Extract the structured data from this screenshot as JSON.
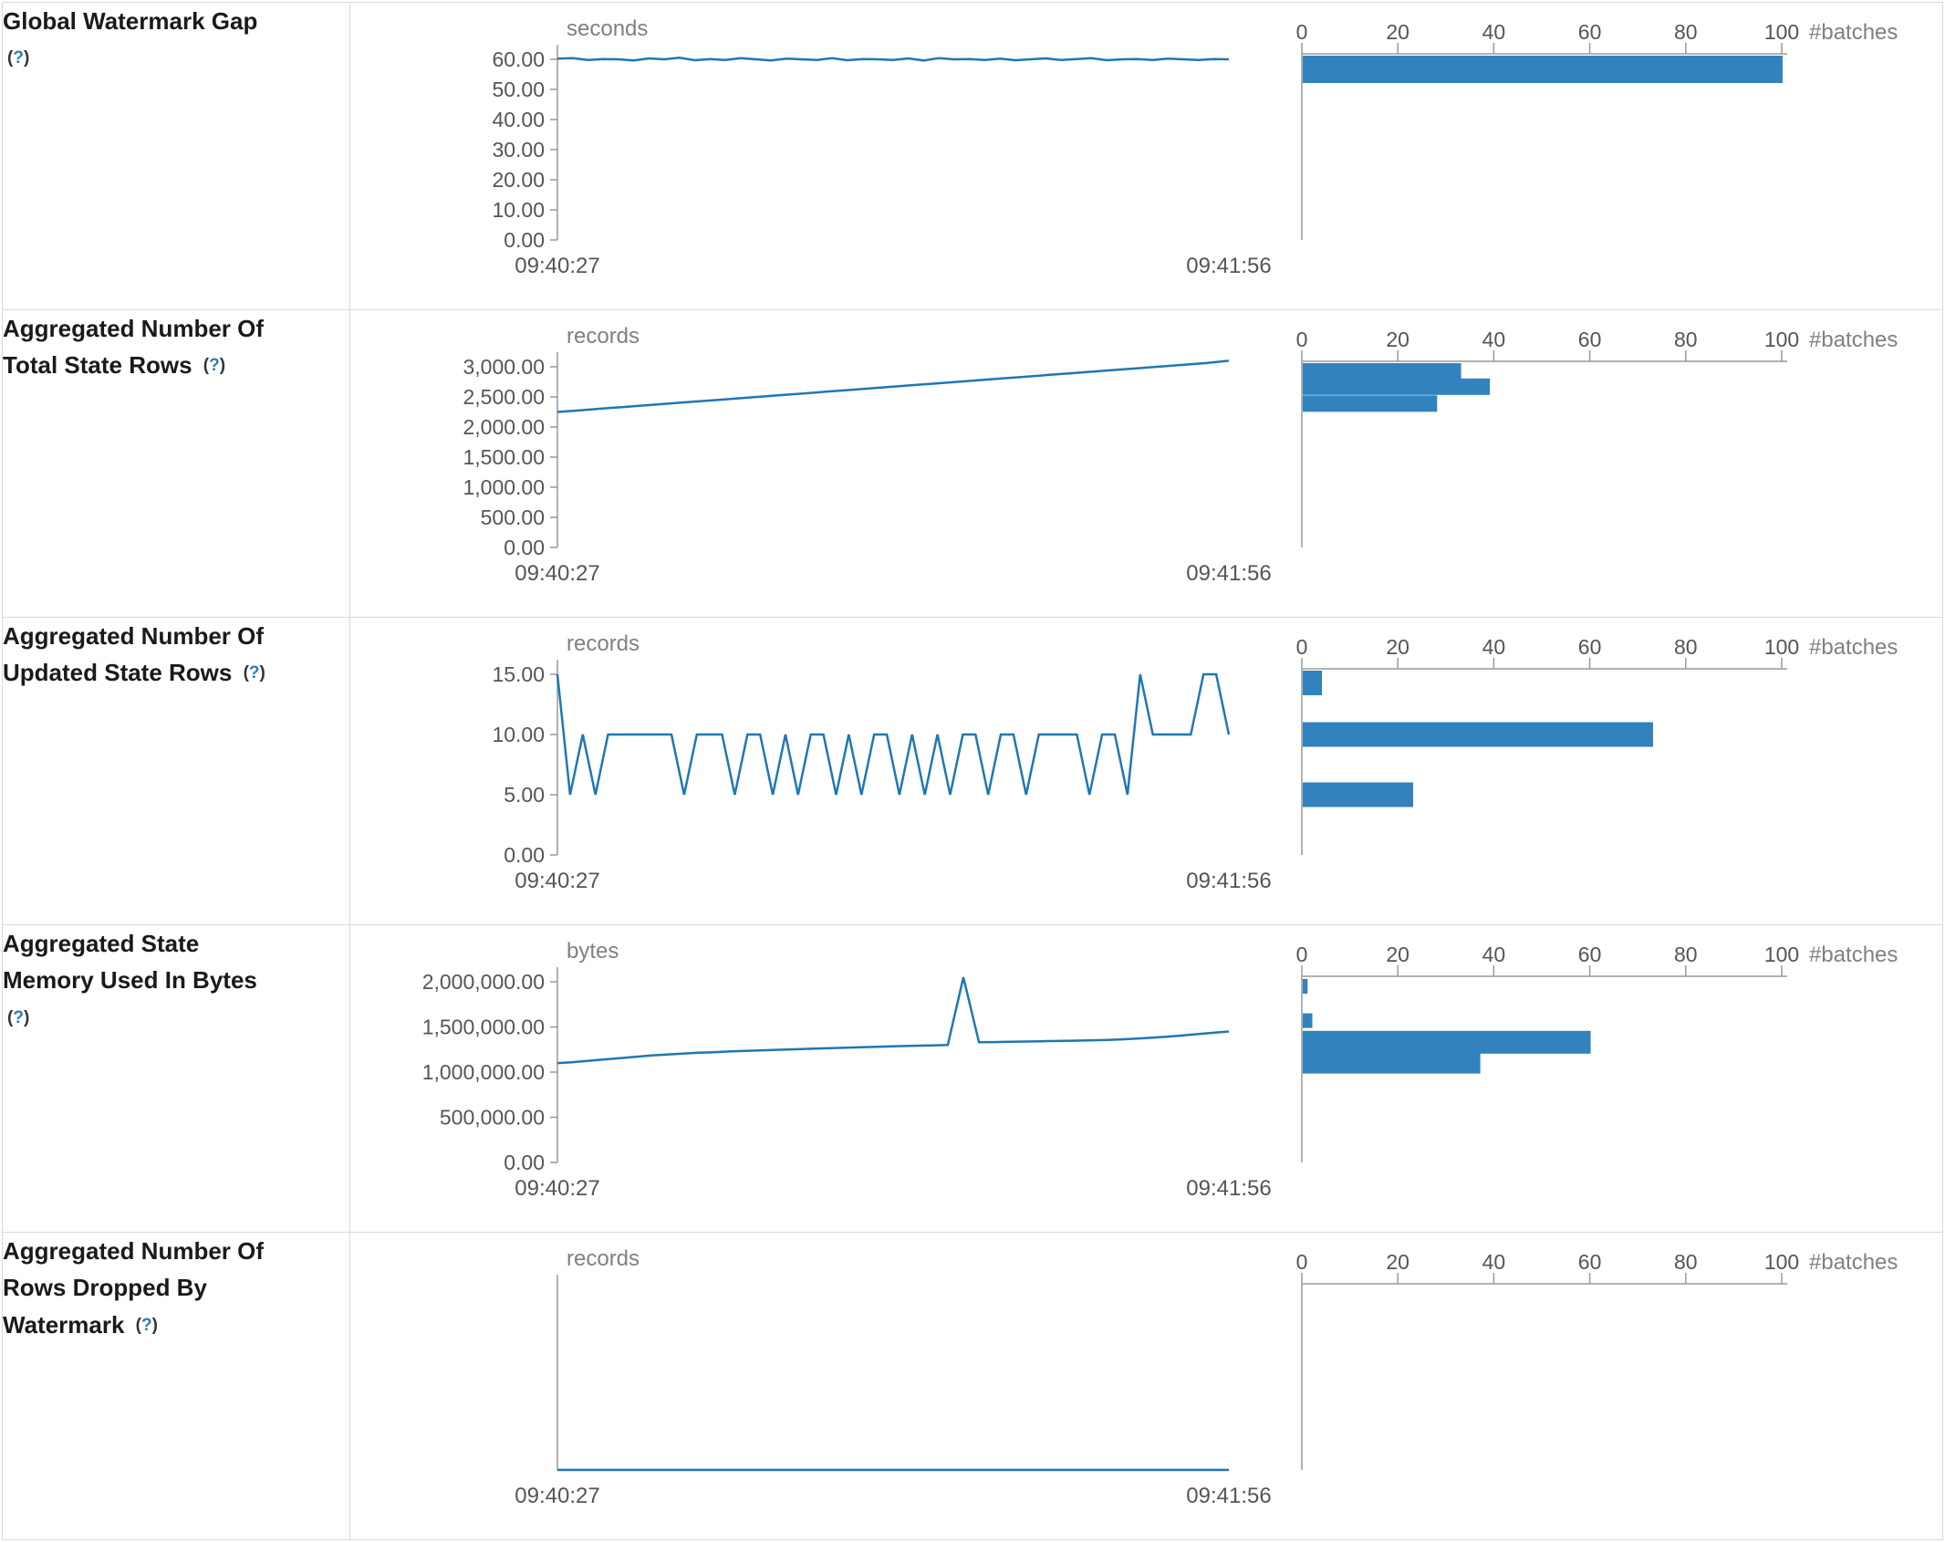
{
  "help": {
    "open": "(",
    "q": "?",
    "close": ")"
  },
  "colors": {
    "line": "#1f77b4",
    "bar": "#3282bd",
    "axis": "#999999",
    "tick_text": "#555555",
    "unit_text": "#808080",
    "time_text": "#555555",
    "label_text": "#1a1a1a",
    "help_question": "#2f7cb5",
    "border": "#d9d9d9"
  },
  "chart_data": [
    {
      "title": "Global Watermark Gap\n",
      "timeline": {
        "type": "line",
        "unit": "seconds",
        "x_start": "09:40:27",
        "x_end": "09:41:56",
        "ylim": [
          0,
          60
        ],
        "y_ticks": [
          0,
          10,
          20,
          30,
          40,
          50,
          60
        ],
        "y_tick_labels": [
          "0.00",
          "10.00",
          "20.00",
          "30.00",
          "40.00",
          "50.00",
          "60.00"
        ],
        "values": [
          60.2,
          60.4,
          59.8,
          60.1,
          60.0,
          59.6,
          60.3,
          60.0,
          60.5,
          59.7,
          60.1,
          59.8,
          60.4,
          60.0,
          59.6,
          60.2,
          60.0,
          59.8,
          60.4,
          59.7,
          60.1,
          60.0,
          59.8,
          60.3,
          59.6,
          60.4,
          60.0,
          60.1,
          59.8,
          60.2,
          59.7,
          60.0,
          60.3,
          59.8,
          60.1,
          60.4,
          59.7,
          60.0,
          60.1,
          59.8,
          60.2,
          60.0,
          59.8,
          60.1,
          60.0
        ]
      },
      "histogram": {
        "type": "bar",
        "orientation": "horizontal",
        "xlabel": "#batches",
        "x_ticks": [
          0,
          20,
          40,
          60,
          80,
          100
        ],
        "xlim": [
          0,
          100
        ],
        "bins": [
          {
            "center": 60,
            "count": 100,
            "h": 30
          }
        ]
      }
    },
    {
      "title": "Aggregated Number Of\nTotal State Rows ",
      "timeline": {
        "type": "line",
        "unit": "records",
        "x_start": "09:40:27",
        "x_end": "09:41:56",
        "ylim": [
          0,
          3000
        ],
        "y_ticks": [
          0,
          500,
          1000,
          1500,
          2000,
          2500,
          3000
        ],
        "y_tick_labels": [
          "0.00",
          "500.00",
          "1,000.00",
          "1,500.00",
          "2,000.00",
          "2,500.00",
          "3,000.00"
        ],
        "values": [
          2250,
          2278,
          2306,
          2334,
          2362,
          2390,
          2418,
          2446,
          2474,
          2502,
          2530,
          2558,
          2586,
          2614,
          2642,
          2670,
          2698,
          2726,
          2754,
          2782,
          2810,
          2838,
          2866,
          2894,
          2922,
          2950,
          2978,
          3006,
          3034,
          3062,
          3100
        ]
      },
      "histogram": {
        "type": "bar",
        "orientation": "horizontal",
        "xlabel": "#batches",
        "x_ticks": [
          0,
          20,
          40,
          60,
          80,
          100
        ],
        "xlim": [
          0,
          100
        ],
        "bins": [
          {
            "center": 2950,
            "count": 33,
            "h": 18
          },
          {
            "center": 2670,
            "count": 39,
            "h": 18
          },
          {
            "center": 2390,
            "count": 28,
            "h": 18
          }
        ]
      }
    },
    {
      "title": "Aggregated Number Of\nUpdated State Rows ",
      "timeline": {
        "type": "line",
        "unit": "records",
        "x_start": "09:40:27",
        "x_end": "09:41:56",
        "ylim": [
          0,
          15
        ],
        "y_ticks": [
          0,
          5,
          10,
          15
        ],
        "y_tick_labels": [
          "0.00",
          "5.00",
          "10.00",
          "15.00"
        ],
        "values": [
          15,
          5,
          10,
          5,
          10,
          10,
          10,
          10,
          10,
          10,
          5,
          10,
          10,
          10,
          5,
          10,
          10,
          5,
          10,
          5,
          10,
          10,
          5,
          10,
          5,
          10,
          10,
          5,
          10,
          5,
          10,
          5,
          10,
          10,
          5,
          10,
          10,
          5,
          10,
          10,
          10,
          10,
          5,
          10,
          10,
          5,
          15,
          10,
          10,
          10,
          10,
          15,
          15,
          10
        ]
      },
      "histogram": {
        "type": "bar",
        "orientation": "horizontal",
        "xlabel": "#batches",
        "x_ticks": [
          0,
          20,
          40,
          60,
          80,
          100
        ],
        "xlim": [
          0,
          100
        ],
        "bins": [
          {
            "center": 15,
            "count": 4,
            "h": 27
          },
          {
            "center": 10,
            "count": 73,
            "h": 27
          },
          {
            "center": 5,
            "count": 23,
            "h": 27
          }
        ]
      }
    },
    {
      "title": "Aggregated State\nMemory Used In Bytes\n",
      "timeline": {
        "type": "line",
        "unit": "bytes",
        "x_start": "09:40:27",
        "x_end": "09:41:56",
        "ylim": [
          0,
          2000000
        ],
        "y_ticks": [
          0,
          500000,
          1000000,
          1500000,
          2000000
        ],
        "y_tick_labels": [
          "0.00",
          "500,000.00",
          "1,000,000.00",
          "1,500,000.00",
          "2,000,000.00"
        ],
        "values": [
          1100000,
          1110000,
          1125000,
          1140000,
          1155000,
          1170000,
          1185000,
          1195000,
          1205000,
          1215000,
          1220000,
          1228000,
          1235000,
          1240000,
          1246000,
          1252000,
          1258000,
          1263000,
          1268000,
          1273000,
          1278000,
          1283000,
          1288000,
          1292000,
          1296000,
          1300000,
          2050000,
          1330000,
          1332000,
          1335000,
          1338000,
          1341000,
          1344000,
          1347000,
          1350000,
          1355000,
          1362000,
          1370000,
          1380000,
          1392000,
          1405000,
          1420000,
          1435000,
          1450000
        ]
      },
      "histogram": {
        "type": "bar",
        "orientation": "horizontal",
        "xlabel": "#batches",
        "x_ticks": [
          0,
          20,
          40,
          60,
          80,
          100
        ],
        "xlim": [
          0,
          100
        ],
        "bins": [
          {
            "center": 1950000,
            "count": 1,
            "h": 16
          },
          {
            "center": 1570000,
            "count": 2,
            "h": 16
          },
          {
            "center": 1330000,
            "count": 60,
            "h": 25
          },
          {
            "center": 1100000,
            "count": 37,
            "h": 23
          }
        ]
      }
    },
    {
      "title": "Aggregated Number Of\nRows Dropped By\nWatermark ",
      "timeline": {
        "type": "line",
        "unit": "records",
        "x_start": "09:40:27",
        "x_end": "09:41:56",
        "ylim": [
          0,
          1
        ],
        "y_ticks": [],
        "y_tick_labels": [],
        "values": [
          0,
          0,
          0,
          0,
          0,
          0,
          0,
          0,
          0,
          0,
          0,
          0,
          0,
          0,
          0,
          0,
          0,
          0,
          0,
          0
        ]
      },
      "histogram": {
        "type": "bar",
        "orientation": "horizontal",
        "xlabel": "#batches",
        "x_ticks": [
          0,
          20,
          40,
          60,
          80,
          100
        ],
        "xlim": [
          0,
          100
        ],
        "bins": []
      }
    }
  ]
}
